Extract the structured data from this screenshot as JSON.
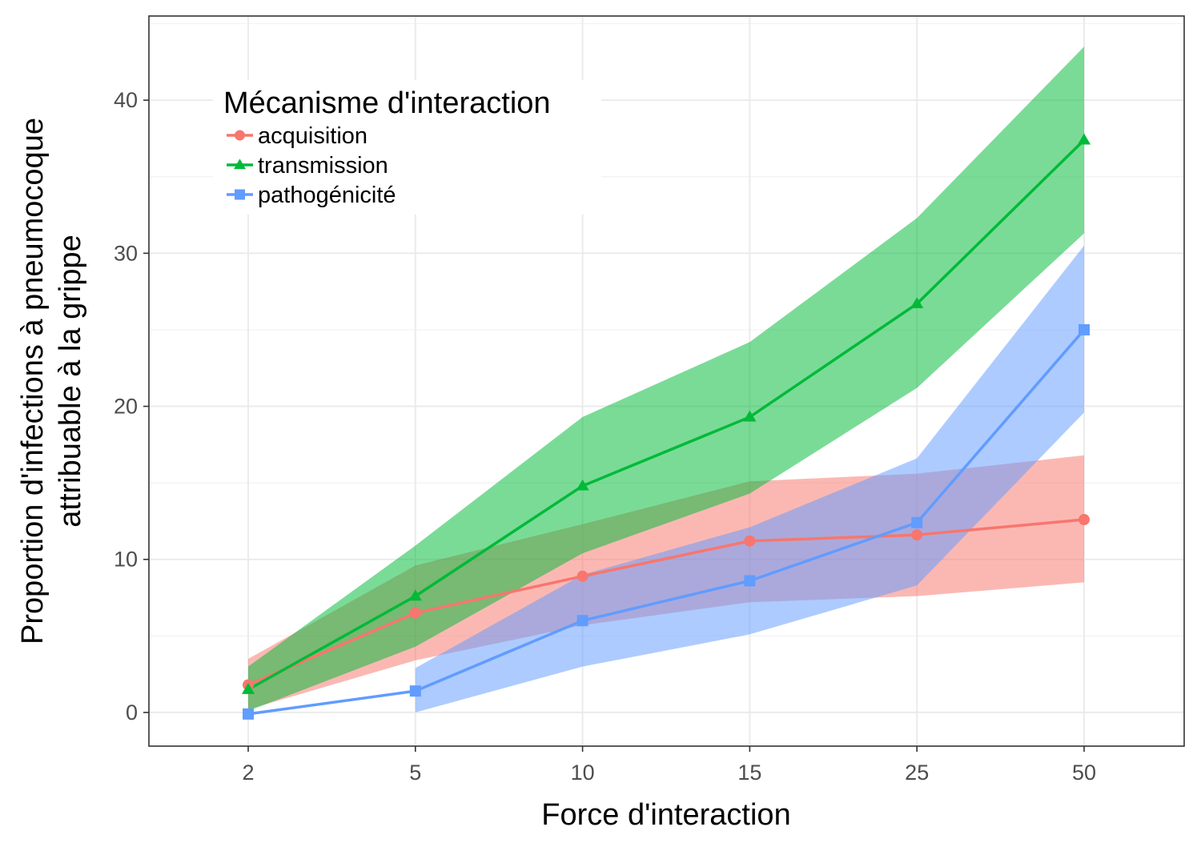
{
  "chart_data": {
    "type": "line",
    "xlabel": "Force d'interaction",
    "ylabel_line1": "Proportion d'infections à pneumocoque",
    "ylabel_line2": "attribuable à la grippe",
    "categories": [
      "2",
      "5",
      "10",
      "15",
      "25",
      "50"
    ],
    "ylim": [
      -2.2,
      45.5
    ],
    "yticks": [
      0,
      10,
      20,
      30,
      40
    ],
    "grid": true,
    "legend": {
      "title": "Mécanisme d'interaction",
      "placement": "top-left"
    },
    "series": [
      {
        "name": "acquisition",
        "marker": "circle",
        "color": "#F8766D",
        "values": [
          1.8,
          6.5,
          8.9,
          11.2,
          11.6,
          12.6
        ],
        "lower": [
          0.2,
          3.4,
          5.7,
          7.2,
          7.6,
          8.5
        ],
        "upper": [
          3.5,
          9.6,
          12.3,
          15.1,
          15.6,
          16.8
        ]
      },
      {
        "name": "transmission",
        "marker": "triangle",
        "color": "#00BA38",
        "values": [
          1.5,
          7.6,
          14.8,
          19.3,
          26.7,
          37.4
        ],
        "lower": [
          0.1,
          4.3,
          10.4,
          14.3,
          21.2,
          31.3
        ],
        "upper": [
          3.0,
          10.9,
          19.3,
          24.2,
          32.3,
          43.5
        ]
      },
      {
        "name": "pathogénicité",
        "marker": "square",
        "color": "#619CFF",
        "values": [
          -0.1,
          1.4,
          6.0,
          8.6,
          12.4,
          25.0
        ],
        "lower": [
          null,
          0.0,
          3.0,
          5.1,
          8.3,
          19.6
        ],
        "upper": [
          null,
          2.9,
          9.0,
          12.1,
          16.6,
          30.5
        ]
      }
    ]
  }
}
